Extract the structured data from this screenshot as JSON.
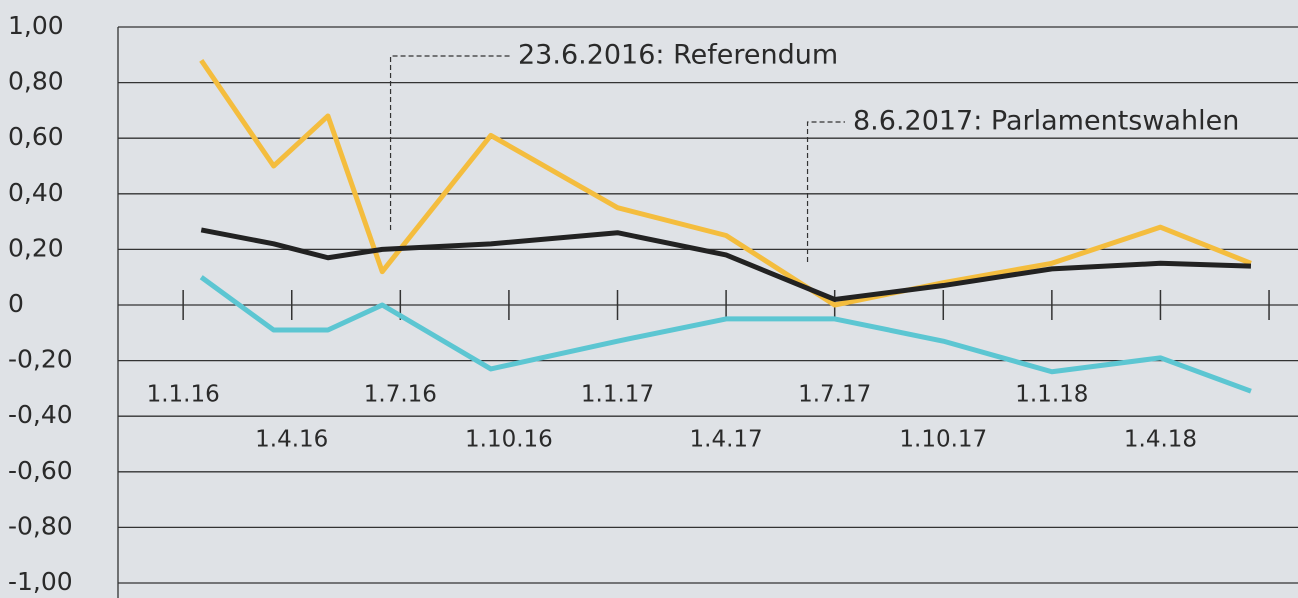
{
  "chart_data": {
    "type": "line",
    "x": [
      0.5,
      2.5,
      4,
      5.5,
      8.5,
      12,
      15,
      18,
      21,
      24,
      27,
      29.5
    ],
    "series": [
      {
        "color": "#f4bd3e",
        "values": [
          0.88,
          0.5,
          0.68,
          0.12,
          0.61,
          0.35,
          0.25,
          0.0,
          0.08,
          0.15,
          0.28,
          0.15
        ]
      },
      {
        "color": "#222222",
        "values": [
          0.27,
          0.22,
          0.17,
          0.2,
          0.22,
          0.26,
          0.18,
          0.02,
          0.07,
          0.13,
          0.15,
          0.14
        ]
      },
      {
        "color": "#5cc6d2",
        "values": [
          0.1,
          -0.09,
          -0.09,
          0.0,
          -0.23,
          -0.13,
          -0.05,
          -0.05,
          -0.13,
          -0.24,
          -0.19,
          -0.31
        ]
      }
    ],
    "xlim": [
      -1.8,
      30.8
    ],
    "xticks": [
      {
        "value": 0,
        "label": "1.1.16"
      },
      {
        "value": 3,
        "label": "1.4.16"
      },
      {
        "value": 6,
        "label": "1.7.16"
      },
      {
        "value": 9,
        "label": "1.10.16"
      },
      {
        "value": 12,
        "label": "1.1.17"
      },
      {
        "value": 15,
        "label": "1.4.17"
      },
      {
        "value": 18,
        "label": "1.7.17"
      },
      {
        "value": 21,
        "label": "1.10.17"
      },
      {
        "value": 24,
        "label": "1.1.18"
      },
      {
        "value": 27,
        "label": "1.4.18"
      },
      {
        "value": 30,
        "label": null
      }
    ],
    "ylim": [
      -1,
      1
    ],
    "yticks": [
      {
        "value": 1,
        "label": "1,00"
      },
      {
        "value": 0.8,
        "label": "0,80"
      },
      {
        "value": 0.6,
        "label": "0,60"
      },
      {
        "value": 0.4,
        "label": "0,40"
      },
      {
        "value": 0.2,
        "label": "0,20"
      },
      0,
      {
        "value": -0.2,
        "label": "-0,20"
      },
      {
        "value": -0.4,
        "label": "-0,40"
      },
      {
        "value": -0.6,
        "label": "-0,60"
      },
      {
        "value": -0.8,
        "label": "-0,80"
      },
      {
        "value": -1,
        "label": "-1,00"
      }
    ],
    "grid": true,
    "annotations": [
      {
        "text": "23.6.2016: Referendum",
        "x": 5.73
      },
      {
        "text": "8.6.2017: Parlamentswahlen",
        "x": 17.25
      }
    ]
  }
}
